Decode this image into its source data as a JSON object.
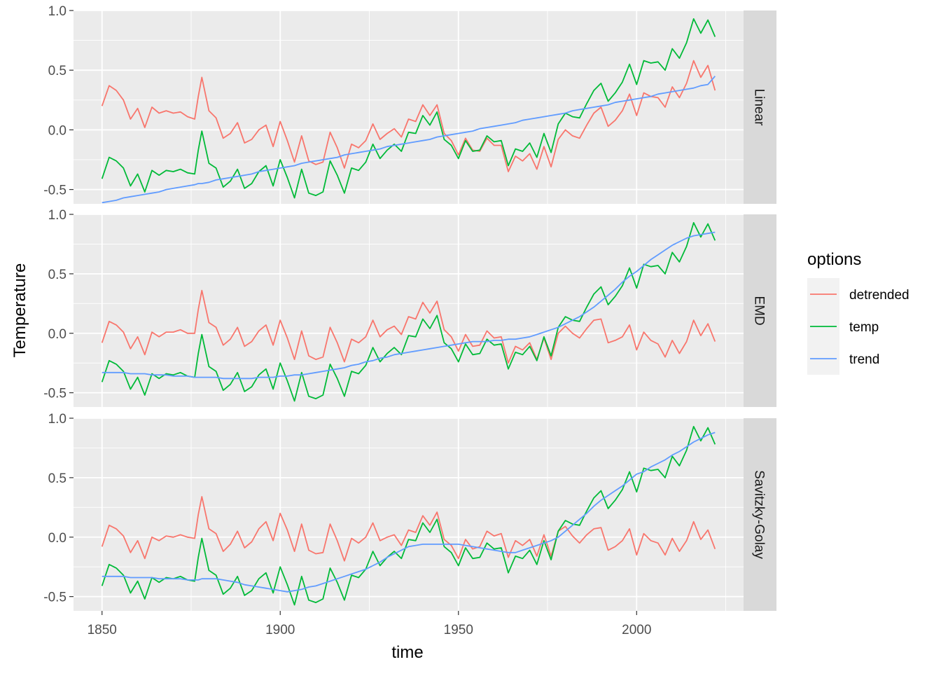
{
  "chart_data": {
    "type": "line",
    "xlabel": "time",
    "ylabel": "Temperature",
    "xlim": [
      1842,
      2030
    ],
    "ylim": [
      -0.62,
      1.0
    ],
    "x_ticks": [
      1850,
      1900,
      1950,
      2000
    ],
    "y_ticks": [
      -0.5,
      0.0,
      0.5,
      1.0
    ],
    "y_tick_labels": [
      "-0.5",
      "0.0",
      "0.5",
      "1.0"
    ],
    "grid": true,
    "legend_placement": "right",
    "legend": {
      "title": "options",
      "entries": [
        {
          "label": "detrended",
          "color": "#F8766D"
        },
        {
          "label": "temp",
          "color": "#00BA38"
        },
        {
          "label": "trend",
          "color": "#619CFF"
        }
      ]
    },
    "series_colors": {
      "detrended": "#F8766D",
      "temp": "#00BA38",
      "trend": "#619CFF"
    },
    "panel_background": "#EBEBEB",
    "strip_background": "#D9D9D9",
    "x": [
      1850,
      1852,
      1854,
      1856,
      1858,
      1860,
      1862,
      1864,
      1866,
      1868,
      1870,
      1872,
      1874,
      1876,
      1877,
      1878,
      1880,
      1882,
      1884,
      1886,
      1888,
      1890,
      1892,
      1894,
      1896,
      1898,
      1900,
      1902,
      1904,
      1906,
      1908,
      1910,
      1912,
      1914,
      1916,
      1918,
      1920,
      1922,
      1924,
      1926,
      1928,
      1930,
      1932,
      1934,
      1936,
      1938,
      1940,
      1942,
      1944,
      1946,
      1948,
      1950,
      1952,
      1954,
      1956,
      1958,
      1960,
      1962,
      1964,
      1966,
      1968,
      1970,
      1972,
      1974,
      1976,
      1978,
      1980,
      1982,
      1984,
      1986,
      1988,
      1990,
      1992,
      1994,
      1996,
      1998,
      2000,
      2002,
      2004,
      2006,
      2008,
      2010,
      2012,
      2014,
      2016,
      2018,
      2020,
      2022
    ],
    "temp": [
      -0.41,
      -0.23,
      -0.26,
      -0.32,
      -0.47,
      -0.37,
      -0.52,
      -0.34,
      -0.38,
      -0.34,
      -0.35,
      -0.33,
      -0.36,
      -0.37,
      -0.17,
      -0.01,
      -0.28,
      -0.32,
      -0.48,
      -0.43,
      -0.33,
      -0.49,
      -0.45,
      -0.35,
      -0.3,
      -0.47,
      -0.25,
      -0.4,
      -0.57,
      -0.33,
      -0.53,
      -0.55,
      -0.52,
      -0.26,
      -0.38,
      -0.53,
      -0.32,
      -0.34,
      -0.27,
      -0.12,
      -0.24,
      -0.17,
      -0.12,
      -0.18,
      -0.02,
      -0.03,
      0.12,
      0.04,
      0.15,
      -0.08,
      -0.13,
      -0.24,
      -0.09,
      -0.18,
      -0.17,
      -0.05,
      -0.1,
      -0.09,
      -0.3,
      -0.16,
      -0.18,
      -0.11,
      -0.23,
      -0.03,
      -0.19,
      0.05,
      0.14,
      0.11,
      0.1,
      0.22,
      0.33,
      0.39,
      0.24,
      0.31,
      0.4,
      0.55,
      0.38,
      0.58,
      0.56,
      0.57,
      0.5,
      0.68,
      0.6,
      0.73,
      0.93,
      0.81,
      0.92,
      0.78
    ],
    "panels": [
      {
        "label": "Linear",
        "trend": [
          -0.61,
          -0.6,
          -0.59,
          -0.57,
          -0.56,
          -0.55,
          -0.54,
          -0.53,
          -0.52,
          -0.5,
          -0.49,
          -0.48,
          -0.47,
          -0.46,
          -0.45,
          -0.45,
          -0.44,
          -0.42,
          -0.41,
          -0.4,
          -0.39,
          -0.38,
          -0.37,
          -0.35,
          -0.34,
          -0.33,
          -0.32,
          -0.31,
          -0.3,
          -0.28,
          -0.27,
          -0.26,
          -0.25,
          -0.24,
          -0.23,
          -0.21,
          -0.2,
          -0.19,
          -0.18,
          -0.17,
          -0.16,
          -0.14,
          -0.13,
          -0.12,
          -0.11,
          -0.1,
          -0.09,
          -0.08,
          -0.06,
          -0.05,
          -0.04,
          -0.03,
          -0.02,
          -0.01,
          0.01,
          0.02,
          0.03,
          0.04,
          0.05,
          0.06,
          0.08,
          0.09,
          0.1,
          0.11,
          0.12,
          0.13,
          0.14,
          0.16,
          0.17,
          0.18,
          0.19,
          0.2,
          0.21,
          0.23,
          0.24,
          0.25,
          0.26,
          0.27,
          0.28,
          0.3,
          0.31,
          0.32,
          0.33,
          0.34,
          0.35,
          0.37,
          0.38,
          0.45
        ]
      },
      {
        "label": "EMD",
        "trend": [
          -0.33,
          -0.33,
          -0.33,
          -0.33,
          -0.34,
          -0.34,
          -0.34,
          -0.35,
          -0.35,
          -0.35,
          -0.36,
          -0.36,
          -0.36,
          -0.37,
          -0.37,
          -0.37,
          -0.37,
          -0.37,
          -0.38,
          -0.38,
          -0.38,
          -0.38,
          -0.38,
          -0.37,
          -0.37,
          -0.37,
          -0.36,
          -0.36,
          -0.35,
          -0.35,
          -0.34,
          -0.33,
          -0.32,
          -0.31,
          -0.3,
          -0.29,
          -0.27,
          -0.26,
          -0.24,
          -0.23,
          -0.21,
          -0.2,
          -0.18,
          -0.17,
          -0.16,
          -0.15,
          -0.14,
          -0.13,
          -0.12,
          -0.11,
          -0.1,
          -0.09,
          -0.08,
          -0.07,
          -0.07,
          -0.07,
          -0.06,
          -0.06,
          -0.05,
          -0.05,
          -0.04,
          -0.03,
          -0.01,
          0.01,
          0.03,
          0.05,
          0.08,
          0.11,
          0.14,
          0.18,
          0.22,
          0.27,
          0.32,
          0.37,
          0.43,
          0.48,
          0.52,
          0.57,
          0.62,
          0.66,
          0.7,
          0.74,
          0.77,
          0.8,
          0.82,
          0.83,
          0.84,
          0.85
        ]
      },
      {
        "label": "Savitzky-Golay",
        "trend": [
          -0.33,
          -0.33,
          -0.33,
          -0.33,
          -0.34,
          -0.34,
          -0.34,
          -0.34,
          -0.35,
          -0.35,
          -0.35,
          -0.35,
          -0.36,
          -0.36,
          -0.36,
          -0.35,
          -0.35,
          -0.35,
          -0.36,
          -0.37,
          -0.38,
          -0.4,
          -0.41,
          -0.42,
          -0.43,
          -0.44,
          -0.45,
          -0.46,
          -0.45,
          -0.44,
          -0.42,
          -0.41,
          -0.39,
          -0.37,
          -0.35,
          -0.33,
          -0.31,
          -0.29,
          -0.27,
          -0.24,
          -0.21,
          -0.17,
          -0.14,
          -0.11,
          -0.08,
          -0.07,
          -0.06,
          -0.06,
          -0.06,
          -0.06,
          -0.06,
          -0.06,
          -0.07,
          -0.08,
          -0.09,
          -0.1,
          -0.11,
          -0.12,
          -0.13,
          -0.13,
          -0.11,
          -0.09,
          -0.07,
          -0.05,
          -0.03,
          0.0,
          0.05,
          0.1,
          0.15,
          0.2,
          0.26,
          0.31,
          0.35,
          0.39,
          0.43,
          0.48,
          0.53,
          0.55,
          0.59,
          0.62,
          0.65,
          0.69,
          0.72,
          0.76,
          0.8,
          0.83,
          0.86,
          0.88
        ]
      }
    ]
  }
}
